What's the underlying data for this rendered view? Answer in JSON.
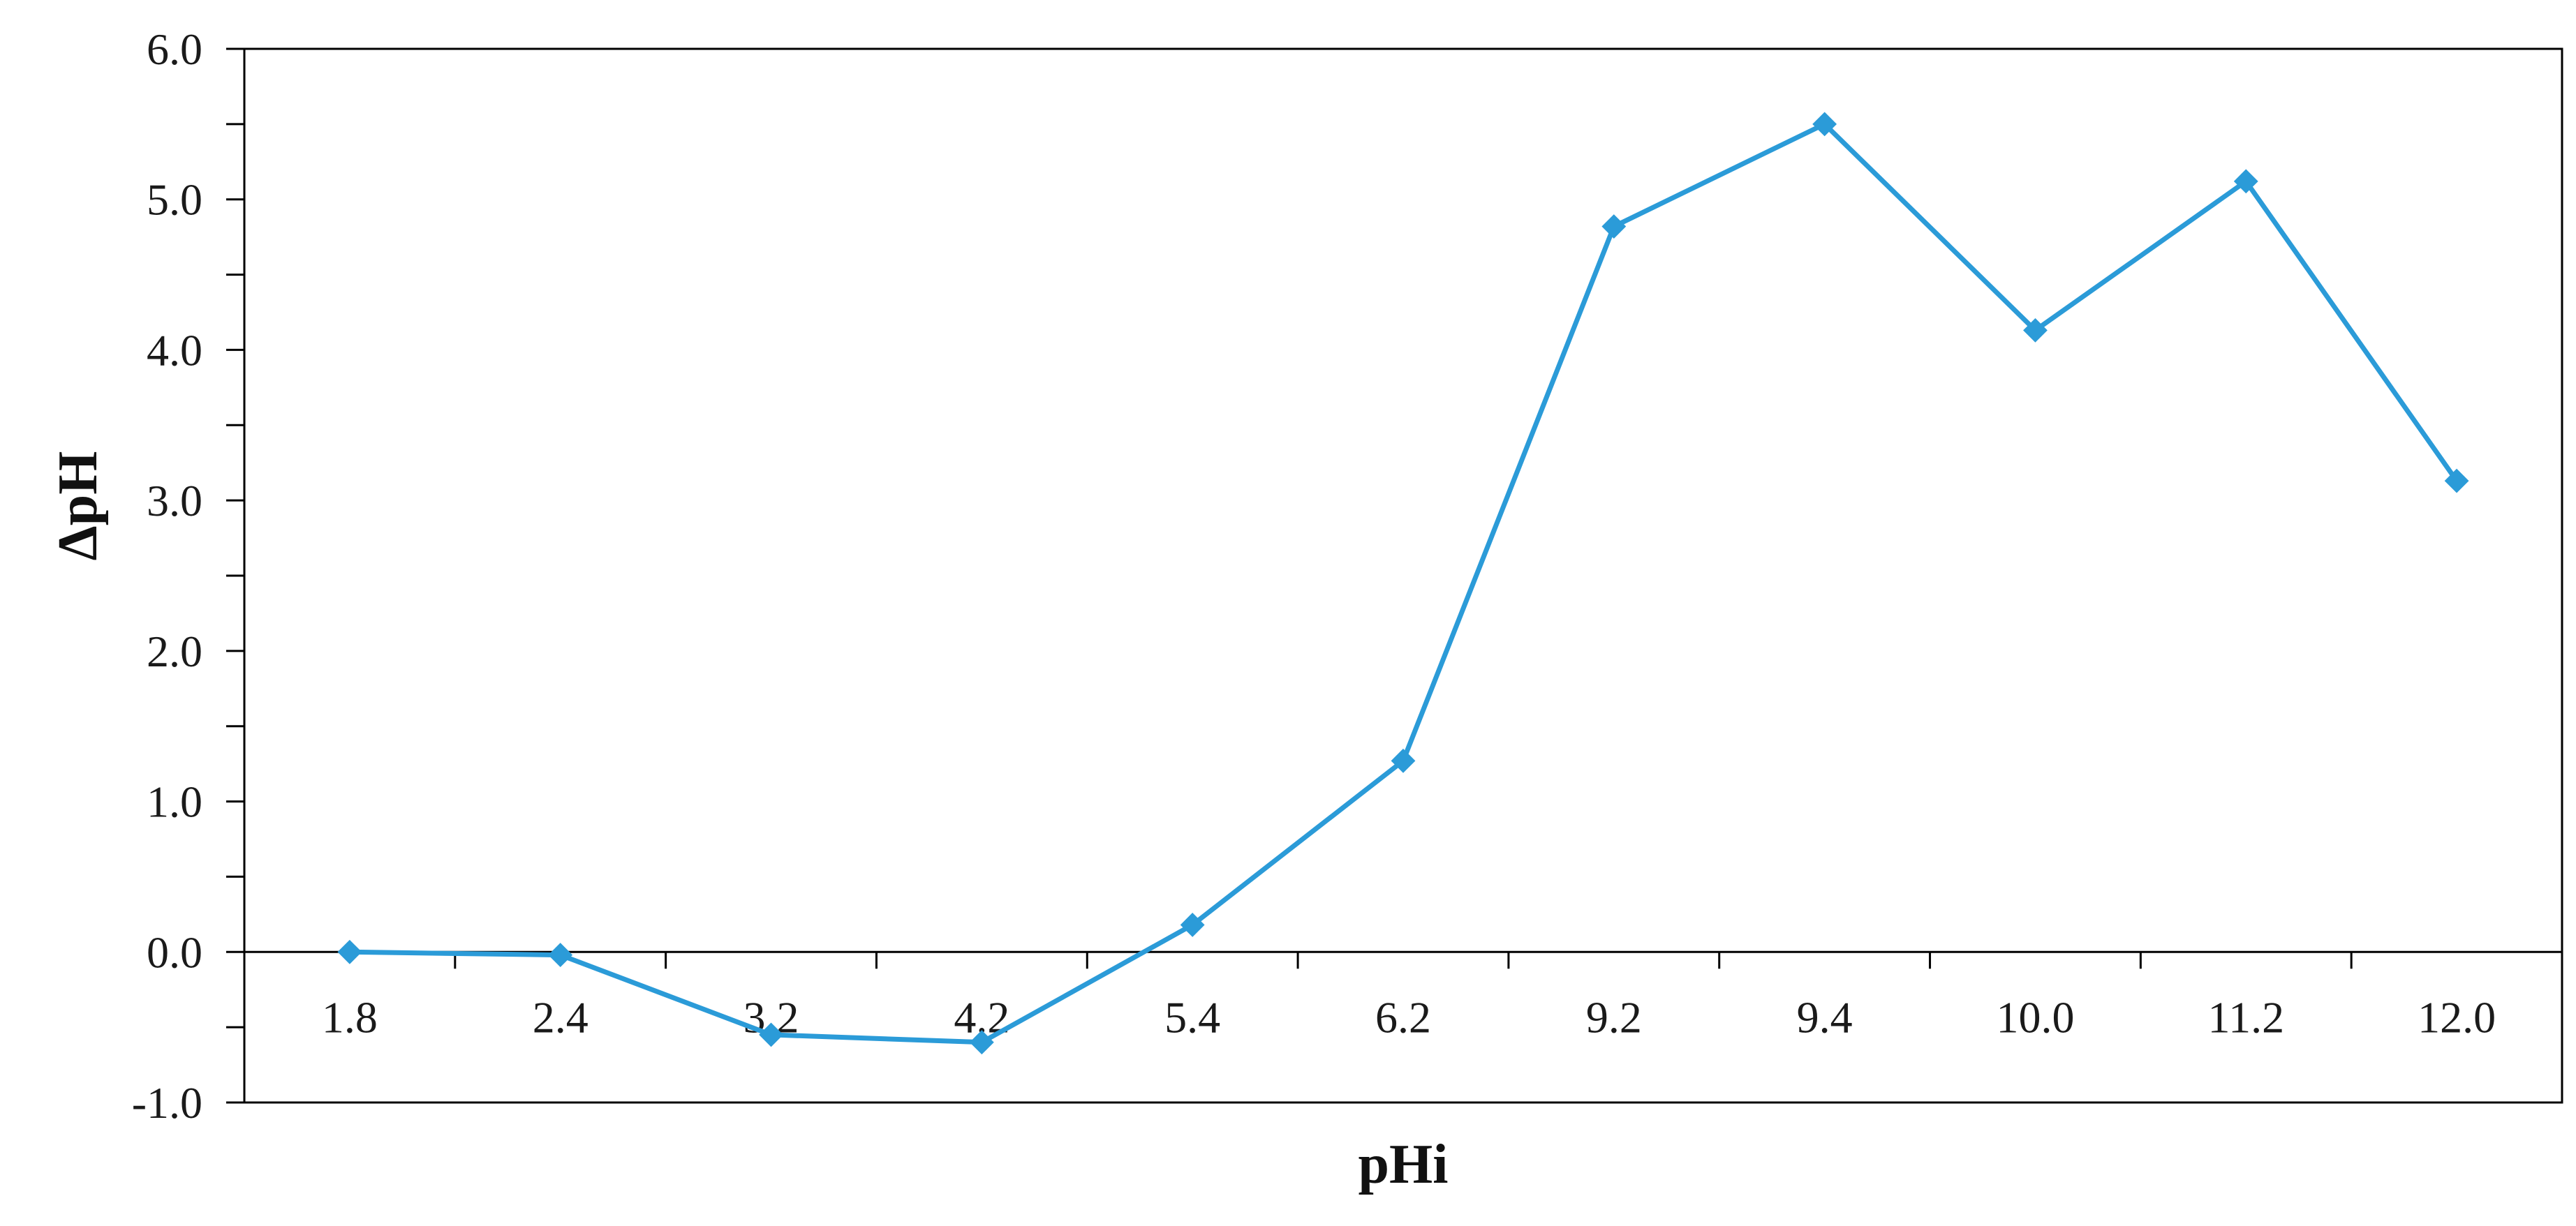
{
  "chart_data": {
    "type": "line",
    "title": "",
    "xlabel": "pHi",
    "ylabel": "ΔpH",
    "categories": [
      "1.8",
      "2.4",
      "3.2",
      "4.2",
      "5.4",
      "6.2",
      "9.2",
      "9.4",
      "10.0",
      "11.2",
      "12.0"
    ],
    "series": [
      {
        "values": [
          0.0,
          -0.02,
          -0.55,
          -0.6,
          0.18,
          1.27,
          4.82,
          5.5,
          4.13,
          5.12,
          3.13
        ],
        "marker": "diamond"
      }
    ],
    "ylim": [
      -1.0,
      6.0
    ],
    "yticks": [
      "-1.0",
      "0.0",
      "1.0",
      "2.0",
      "3.0",
      "4.0",
      "5.0",
      "6.0"
    ],
    "grid": false,
    "legend": "none",
    "colors": {
      "series": "#2b9bd8",
      "axis": "#000000"
    }
  }
}
